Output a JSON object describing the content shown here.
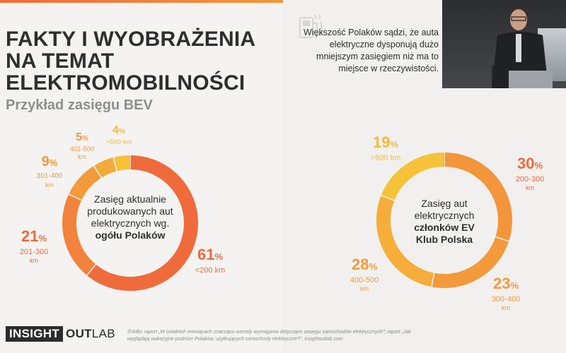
{
  "title_lines": [
    "FAKTY I WYOBRAŻENIA",
    "NA TEMAT",
    "ELEKTROMOBILNOŚCI"
  ],
  "subtitle": "Przykład zasięgu BEV",
  "claim": "Większość Polaków sądzi, że auta elektryczne dysponują dużo mniejszym zasięgiem niż ma to miejsce w rzeczywistości.",
  "colors": {
    "red": "#f06b3c",
    "orange": "#f39a3a",
    "yellow": "#f6b93a",
    "dark": "#2e2e2e"
  },
  "chart_data": [
    {
      "type": "pie",
      "center_label": {
        "pre": "Zasięg aktualnie produkowanych aut elektrycznych wg.",
        "bold": "ogółu Polaków"
      },
      "slices": [
        {
          "value": 61,
          "range": "<200 km",
          "unit": "",
          "color": "#f06b3c"
        },
        {
          "value": 21,
          "range": "201-300",
          "unit": "km",
          "color": "#f2833c"
        },
        {
          "value": 9,
          "range": "301-400",
          "unit": "km",
          "color": "#f39a3a"
        },
        {
          "value": 5,
          "range": "401-500",
          "unit": "km",
          "color": "#f4aa3a"
        },
        {
          "value": 4,
          "range": ">500 km",
          "unit": "",
          "color": "#f6c23a"
        }
      ]
    },
    {
      "type": "pie",
      "center_label": {
        "pre": "Zasięg aut elektrycznych",
        "bold": "członków EV Klub Polska"
      },
      "slices": [
        {
          "value": 30,
          "range": "200-300",
          "unit": "km",
          "color": "#f3953a"
        },
        {
          "value": 23,
          "range": "300-400",
          "unit": "km",
          "color": "#f39a3a"
        },
        {
          "value": 28,
          "range": "400-500",
          "unit": "km",
          "color": "#f6ad3a"
        },
        {
          "value": 19,
          "range": ">500 km",
          "unit": "",
          "color": "#f6c23a"
        }
      ]
    }
  ],
  "pct_sign": "%",
  "logo": {
    "part1": "INSIGHT",
    "part2": "OUT",
    "part3": "LAB"
  },
  "source": "Źródło: raport „W ostatnich miesiącach znacząco wzrosły wymagania dotyczące zasięgu samochodów elektrycznych\"; raport „Jak wyglądają wakacyjne podróże Polaków, użytkujących samochody elektryczne?\", insightoutlab.com"
}
